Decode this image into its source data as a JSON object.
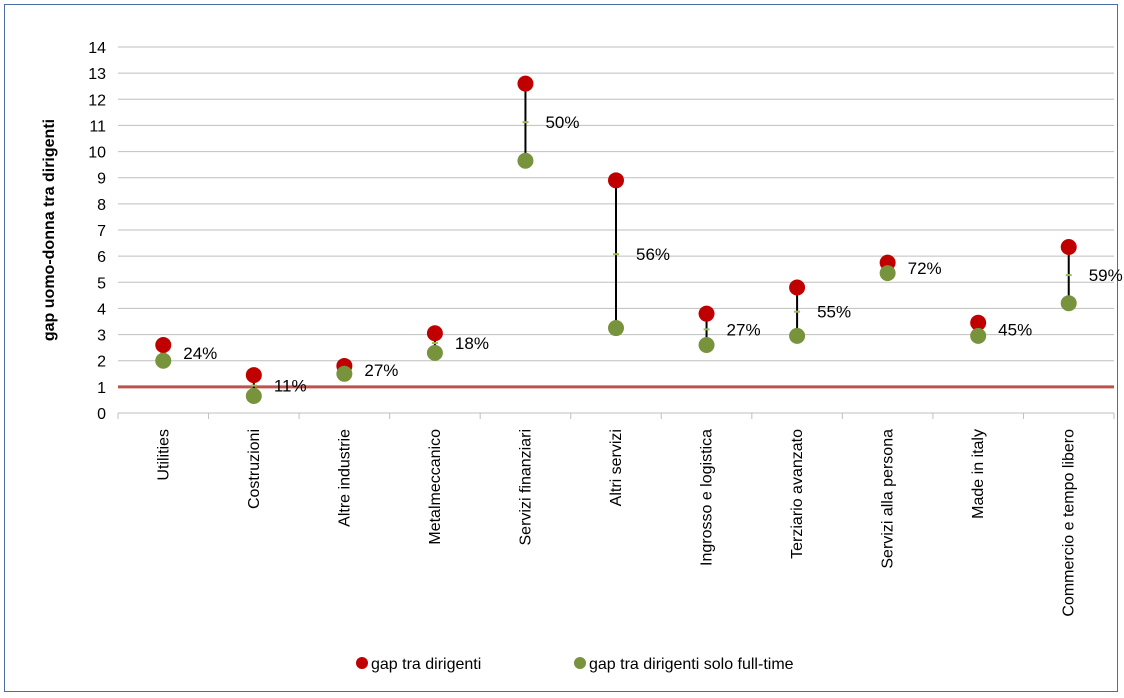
{
  "chart_data": {
    "type": "scatter",
    "ylabel": "gap uomo-donna tra dirigenti",
    "xlabel": "",
    "ylim": [
      0,
      14
    ],
    "y_ticks": [
      0,
      1,
      2,
      3,
      4,
      5,
      6,
      7,
      8,
      9,
      10,
      11,
      12,
      13,
      14
    ],
    "grid": true,
    "legend_position": "bottom",
    "categories": [
      "Utilities",
      "Costruzioni",
      "Altre industrie",
      "Metalmeccanico",
      "Servizi finanziari",
      "Altri servizi",
      "Ingrosso e logistica",
      "Terziario avanzato",
      "Servizi alla persona",
      "Made in italy",
      "Commercio e tempo libero"
    ],
    "series": [
      {
        "name": "gap tra dirigenti",
        "color": "#c00000",
        "values": [
          2.6,
          1.45,
          1.8,
          3.05,
          12.6,
          8.9,
          3.8,
          4.8,
          5.75,
          3.45,
          6.35
        ]
      },
      {
        "name": "gap tra dirigenti solo full-time",
        "color": "#77933c",
        "values": [
          2.0,
          0.65,
          1.5,
          2.3,
          9.65,
          3.25,
          2.6,
          2.95,
          5.35,
          2.95,
          4.2
        ]
      }
    ],
    "labels": [
      "24%",
      "11%",
      "27%",
      "18%",
      "50%",
      "56%",
      "27%",
      "55%",
      "72%",
      "45%",
      "59%"
    ],
    "reference_line": {
      "y": 1,
      "color": "#c0504d"
    }
  }
}
